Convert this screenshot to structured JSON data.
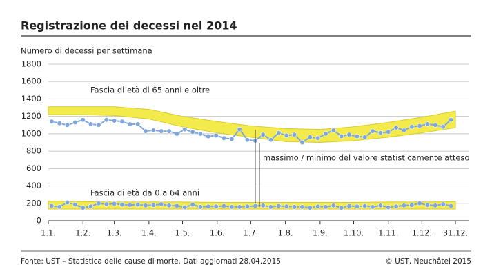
{
  "chart_data": {
    "type": "line",
    "title": "Registrazione dei decessi nel 2014",
    "subtitle": "Numero di decessi per settimana",
    "footer_source": "Fonte: UST – Statistica delle cause di morte. Dati aggiornati 28.04.2015",
    "footer_copyright": "© UST, Neuchâtel 2015",
    "annotations": [
      "Fascia di età di 65 anni e oltre",
      "Fascia di età da 0 a 64 anni",
      "massimo / minimo del valore statisticamente atteso"
    ],
    "x": [
      3,
      10,
      17,
      24,
      31,
      38,
      45,
      52,
      59,
      66,
      73,
      80,
      87,
      94,
      101,
      108,
      115,
      122,
      129,
      136,
      143,
      150,
      157,
      164,
      171,
      178,
      185,
      192,
      199,
      206,
      213,
      220,
      227,
      234,
      241,
      248,
      255,
      262,
      269,
      276,
      283,
      290,
      297,
      304,
      311,
      318,
      325,
      332,
      339,
      346,
      353,
      360
    ],
    "series": [
      {
        "color": "#7fa7dc",
        "values": [
          1140,
          1120,
          1100,
          1130,
          1160,
          1110,
          1100,
          1160,
          1150,
          1140,
          1110,
          1110,
          1030,
          1040,
          1030,
          1030,
          1000,
          1050,
          1020,
          1000,
          970,
          980,
          950,
          940,
          1050,
          930,
          920,
          990,
          930,
          1010,
          980,
          990,
          900,
          960,
          950,
          1000,
          1040,
          970,
          990,
          970,
          960,
          1030,
          1010,
          1020,
          1070,
          1040,
          1080,
          1090,
          1110,
          1100,
          1080,
          1160
        ]
      },
      {
        "color": "#7fa7dc",
        "values": [
          170,
          160,
          210,
          185,
          150,
          165,
          200,
          190,
          195,
          185,
          180,
          185,
          175,
          180,
          190,
          175,
          170,
          155,
          185,
          160,
          165,
          165,
          170,
          160,
          160,
          165,
          170,
          175,
          160,
          170,
          165,
          160,
          160,
          150,
          165,
          160,
          175,
          150,
          170,
          165,
          170,
          160,
          175,
          155,
          165,
          175,
          180,
          200,
          180,
          175,
          190,
          170
        ]
      }
    ],
    "bands": [
      {
        "color": "#f3ea4c",
        "x": [
          0,
          31,
          59,
          90,
          120,
          151,
          181,
          212,
          243,
          273,
          304,
          334,
          364
        ],
        "upper": [
          1310,
          1310,
          1310,
          1280,
          1200,
          1140,
          1090,
          1060,
          1050,
          1080,
          1130,
          1190,
          1260
        ],
        "lower": [
          1220,
          1220,
          1210,
          1170,
          1080,
          1010,
          960,
          910,
          900,
          920,
          960,
          1010,
          1070
        ]
      },
      {
        "color": "#f3ea4c",
        "x": [
          0,
          31,
          59,
          90,
          120,
          151,
          181,
          212,
          243,
          273,
          304,
          334,
          364
        ],
        "upper": [
          225,
          220,
          215,
          215,
          215,
          210,
          210,
          210,
          210,
          210,
          215,
          215,
          220
        ],
        "lower": [
          135,
          135,
          135,
          135,
          135,
          135,
          135,
          135,
          135,
          135,
          135,
          135,
          135
        ]
      }
    ],
    "xlim": [
      0,
      364
    ],
    "xticks": [
      {
        "value": 0,
        "label": "1.1."
      },
      {
        "value": 31,
        "label": "1.2."
      },
      {
        "value": 59,
        "label": "1.3."
      },
      {
        "value": 90,
        "label": "1.4."
      },
      {
        "value": 120,
        "label": "1.5."
      },
      {
        "value": 151,
        "label": "1.6."
      },
      {
        "value": 181,
        "label": "1.7."
      },
      {
        "value": 212,
        "label": "1.8."
      },
      {
        "value": 243,
        "label": "1.9."
      },
      {
        "value": 273,
        "label": "1.10."
      },
      {
        "value": 304,
        "label": "1.11."
      },
      {
        "value": 334,
        "label": "1.12."
      },
      {
        "value": 364,
        "label": "31.12."
      }
    ],
    "ylim": [
      0,
      1800
    ],
    "yticks": [
      0,
      200,
      400,
      600,
      800,
      1000,
      1200,
      1400,
      1600,
      1800
    ],
    "grid": true
  }
}
